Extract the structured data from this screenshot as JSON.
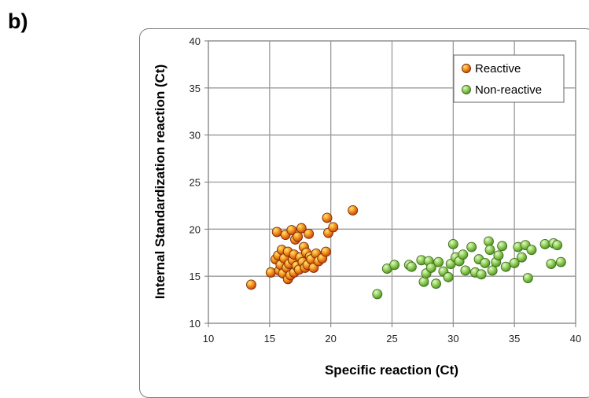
{
  "panel_label": "b)",
  "chart_data": {
    "type": "scatter",
    "title": "",
    "xlabel": "Specific reaction (Ct)",
    "ylabel": "Internal Standardization reaction (Ct)",
    "xlim": [
      10,
      40
    ],
    "ylim": [
      10,
      40
    ],
    "xticks": [
      10,
      15,
      20,
      25,
      30,
      35,
      40
    ],
    "yticks": [
      10,
      15,
      20,
      25,
      30,
      35,
      40
    ],
    "grid": true,
    "legend_position": "top-right",
    "series": [
      {
        "name": "Reactive",
        "color": "#e8741a",
        "points": [
          [
            13.5,
            14.1
          ],
          [
            15.1,
            15.4
          ],
          [
            15.5,
            16.8
          ],
          [
            15.6,
            19.7
          ],
          [
            15.7,
            17.2
          ],
          [
            15.8,
            15.6
          ],
          [
            15.9,
            16.2
          ],
          [
            16.0,
            17.8
          ],
          [
            16.1,
            15.3
          ],
          [
            16.2,
            16.9
          ],
          [
            16.3,
            19.4
          ],
          [
            16.4,
            15.9
          ],
          [
            16.5,
            14.7
          ],
          [
            16.5,
            17.6
          ],
          [
            16.6,
            16.3
          ],
          [
            16.7,
            15.1
          ],
          [
            16.8,
            19.9
          ],
          [
            16.9,
            16.7
          ],
          [
            17.0,
            17.3
          ],
          [
            17.0,
            15.4
          ],
          [
            17.1,
            18.9
          ],
          [
            17.2,
            16.1
          ],
          [
            17.3,
            19.2
          ],
          [
            17.4,
            15.7
          ],
          [
            17.5,
            17.0
          ],
          [
            17.6,
            20.1
          ],
          [
            17.7,
            16.5
          ],
          [
            17.8,
            18.1
          ],
          [
            17.9,
            15.9
          ],
          [
            18.0,
            17.5
          ],
          [
            18.1,
            16.2
          ],
          [
            18.2,
            19.5
          ],
          [
            18.3,
            17.1
          ],
          [
            18.4,
            16.8
          ],
          [
            18.6,
            15.9
          ],
          [
            18.8,
            17.4
          ],
          [
            19.0,
            16.6
          ],
          [
            19.3,
            16.9
          ],
          [
            19.6,
            17.6
          ],
          [
            19.7,
            21.2
          ],
          [
            19.8,
            19.6
          ],
          [
            20.2,
            20.2
          ],
          [
            21.8,
            22.0
          ]
        ]
      },
      {
        "name": "Non-reactive",
        "color": "#7dbb3f",
        "points": [
          [
            23.8,
            13.1
          ],
          [
            24.6,
            15.8
          ],
          [
            25.2,
            16.2
          ],
          [
            26.4,
            16.2
          ],
          [
            26.6,
            16.0
          ],
          [
            27.4,
            16.7
          ],
          [
            27.6,
            14.4
          ],
          [
            27.8,
            15.3
          ],
          [
            28.0,
            16.6
          ],
          [
            28.2,
            15.9
          ],
          [
            28.6,
            14.2
          ],
          [
            28.8,
            16.5
          ],
          [
            29.2,
            15.5
          ],
          [
            29.6,
            14.9
          ],
          [
            29.8,
            16.3
          ],
          [
            30.0,
            18.4
          ],
          [
            30.2,
            17.0
          ],
          [
            30.5,
            16.6
          ],
          [
            30.8,
            17.3
          ],
          [
            31.0,
            15.6
          ],
          [
            31.5,
            18.1
          ],
          [
            31.8,
            15.4
          ],
          [
            32.1,
            16.8
          ],
          [
            32.3,
            15.2
          ],
          [
            32.6,
            16.4
          ],
          [
            32.9,
            18.7
          ],
          [
            33.0,
            17.8
          ],
          [
            33.2,
            15.6
          ],
          [
            33.5,
            16.5
          ],
          [
            33.7,
            17.2
          ],
          [
            34.0,
            18.2
          ],
          [
            34.3,
            16.0
          ],
          [
            35.0,
            16.4
          ],
          [
            35.3,
            18.1
          ],
          [
            35.6,
            17.0
          ],
          [
            35.9,
            18.3
          ],
          [
            36.1,
            14.8
          ],
          [
            36.4,
            17.8
          ],
          [
            37.5,
            18.4
          ],
          [
            38.0,
            16.3
          ],
          [
            38.2,
            18.5
          ],
          [
            38.5,
            18.3
          ],
          [
            38.8,
            16.5
          ]
        ]
      }
    ]
  }
}
